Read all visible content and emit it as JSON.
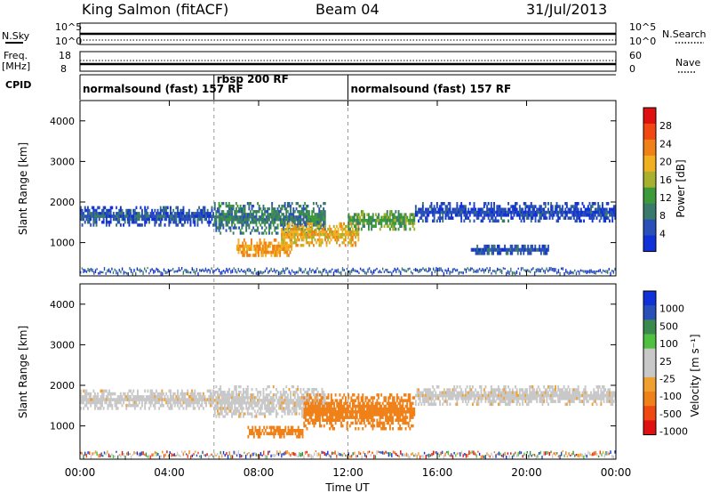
{
  "header": {
    "station": "King Salmon (fitACF)",
    "beam": "Beam 04",
    "date": "31/Jul/2013"
  },
  "panels": {
    "nsky_label": "N.Sky",
    "nsky_top": "10^5",
    "nsky_bottom": "10^0",
    "nsearch_label": "N.Search",
    "nsearch_top": "10^5",
    "nsearch_bottom": "10^0",
    "freq_label": "Freq.",
    "freq_unit": "[MHz]",
    "freq_top": "18",
    "freq_bottom": "8",
    "nave_label": "Nave",
    "nave_top": "60",
    "nave_bottom": "0",
    "cpid_label": "CPID"
  },
  "cpid_segments": [
    {
      "label": "normalsound (fast) 157 RF",
      "start_hr": 0.0,
      "end_hr": 6.0
    },
    {
      "label": "rbsp 200 RF",
      "start_hr": 6.0,
      "end_hr": 12.0
    },
    {
      "label": "normalsound (fast) 157 RF",
      "start_hr": 12.0,
      "end_hr": 24.0
    }
  ],
  "colors": {
    "power": [
      "#1030d8",
      "#2a4fb8",
      "#3a7a6a",
      "#3c9a3a",
      "#a8b030",
      "#f0b020",
      "#f08018",
      "#f04810",
      "#e01010"
    ],
    "velocity": [
      "#e01010",
      "#f04810",
      "#f08018",
      "#f0a030",
      "#c8c8c8",
      "#c8c8c8",
      "#50c040",
      "#3a8a50",
      "#2a4fb8",
      "#1030d8"
    ]
  },
  "chart_data": [
    {
      "type": "heatmap",
      "title": "",
      "quantity": "Power",
      "ylabel": "Slant Range [km]",
      "xlabel": "",
      "x_range_hr": [
        0,
        24
      ],
      "ylim": [
        180,
        4500
      ],
      "yticks": [
        1000,
        2000,
        3000,
        4000
      ],
      "colorbar_label": "Power [dB]",
      "colorbar_ticks": [
        "4",
        "8",
        "12",
        "16",
        "20",
        "24",
        "28"
      ],
      "colorbar_range": [
        0,
        32
      ],
      "regions": [
        {
          "t0": 0.0,
          "t1": 6.0,
          "r0": 1400,
          "r1": 1900,
          "value": 6
        },
        {
          "t0": 6.0,
          "t1": 11.0,
          "r0": 1200,
          "r1": 2000,
          "value": 10
        },
        {
          "t0": 7.0,
          "t1": 9.5,
          "r0": 650,
          "r1": 1100,
          "value": 24
        },
        {
          "t0": 9.0,
          "t1": 12.5,
          "r0": 900,
          "r1": 1500,
          "value": 22
        },
        {
          "t0": 12.0,
          "t1": 15.0,
          "r0": 1300,
          "r1": 1800,
          "value": 14
        },
        {
          "t0": 15.0,
          "t1": 24.0,
          "r0": 1500,
          "r1": 2000,
          "value": 5
        },
        {
          "t0": 17.5,
          "t1": 21.0,
          "r0": 700,
          "r1": 950,
          "value": 6
        }
      ]
    },
    {
      "type": "heatmap",
      "title": "",
      "quantity": "Velocity",
      "ylabel": "Slant Range [km]",
      "xlabel": "Time UT",
      "x_range_hr": [
        0,
        24
      ],
      "ylim": [
        180,
        4500
      ],
      "yticks": [
        1000,
        2000,
        3000,
        4000
      ],
      "xticks": [
        "00:00",
        "04:00",
        "08:00",
        "12:00",
        "16:00",
        "20:00",
        "00:00"
      ],
      "colorbar_label": "Velocity [m s⁻¹]",
      "colorbar_ticks": [
        "1000",
        "500",
        "100",
        "25",
        "-25",
        "-100",
        "-500",
        "-1000"
      ],
      "regions": [
        {
          "t0": 0.0,
          "t1": 6.0,
          "r0": 1400,
          "r1": 1900,
          "value": 0
        },
        {
          "t0": 6.0,
          "t1": 11.0,
          "r0": 1200,
          "r1": 2000,
          "value": 0
        },
        {
          "t0": 7.5,
          "t1": 10.0,
          "r0": 700,
          "r1": 1000,
          "value": -150
        },
        {
          "t0": 10.0,
          "t1": 15.0,
          "r0": 900,
          "r1": 1800,
          "value": -300
        },
        {
          "t0": 15.0,
          "t1": 24.0,
          "r0": 1500,
          "r1": 2000,
          "value": 0
        }
      ]
    }
  ]
}
